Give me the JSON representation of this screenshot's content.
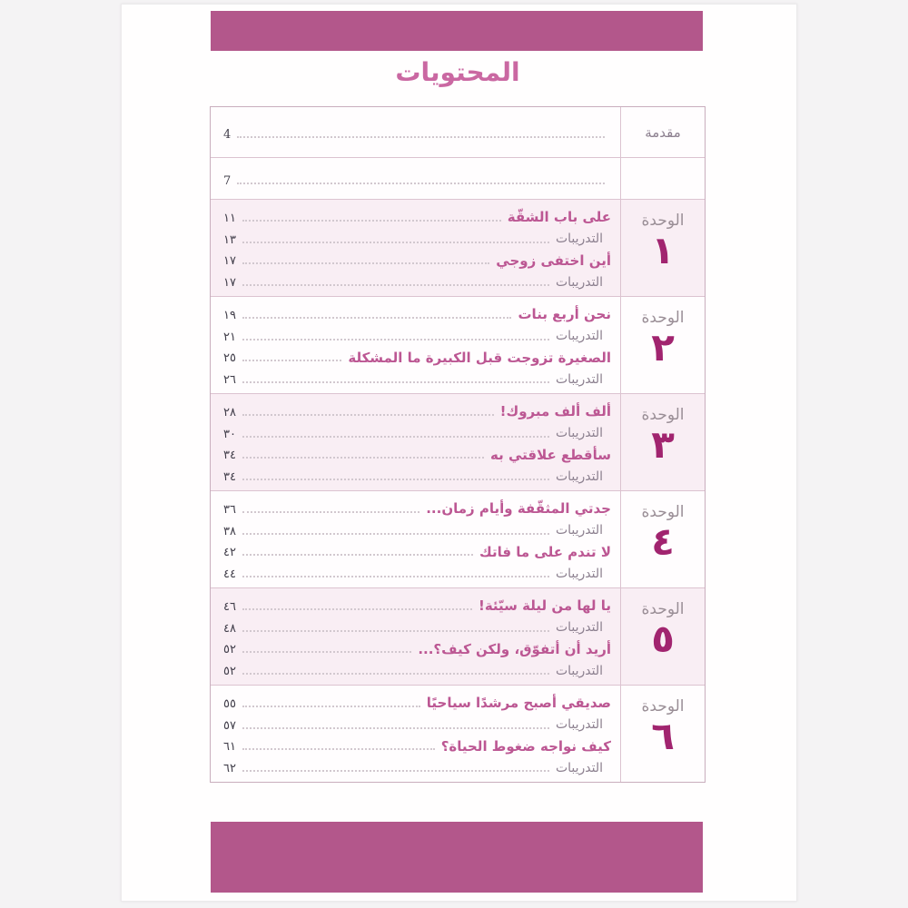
{
  "colors": {
    "accent_bar": "#b3578b",
    "title_text": "#ca68a2",
    "chapter_text": "#bc5793",
    "exercises_text": "#8d8190",
    "unit_label_text": "#9a8e96",
    "unit_number_text": "#a1246f",
    "page_number_text": "#413e4a",
    "row_tint": "#f9eef4",
    "table_border": "#dcc3d0"
  },
  "page_title": "المحتويات",
  "toc": {
    "intro_rows": [
      {
        "label": "مقدمة",
        "page": "4"
      },
      {
        "label": "",
        "page": "7"
      }
    ],
    "units": [
      {
        "unit_label": "الوحدة",
        "unit_number": "١",
        "tinted": true,
        "entries": [
          {
            "type": "chapter",
            "title": "على باب الشقّة",
            "page": "١١"
          },
          {
            "type": "exercises",
            "title": "التدريبات",
            "page": "١٣"
          },
          {
            "type": "chapter",
            "title": "أين اختفى زوجي",
            "page": "١٧"
          },
          {
            "type": "exercises",
            "title": "التدريبات",
            "page": "١٧"
          }
        ]
      },
      {
        "unit_label": "الوحدة",
        "unit_number": "٢",
        "tinted": false,
        "entries": [
          {
            "type": "chapter",
            "title": "نحن أربع بنات",
            "page": "١٩"
          },
          {
            "type": "exercises",
            "title": "التدريبات",
            "page": "٢١"
          },
          {
            "type": "chapter",
            "title": "الصغيرة تزوجت قبل الكبيرة ما المشكلة",
            "page": "٢٥"
          },
          {
            "type": "exercises",
            "title": "التدريبات",
            "page": "٢٦"
          }
        ]
      },
      {
        "unit_label": "الوحدة",
        "unit_number": "٣",
        "tinted": true,
        "entries": [
          {
            "type": "chapter",
            "title": "ألف ألف مبروك!",
            "page": "٢٨"
          },
          {
            "type": "exercises",
            "title": "التدريبات",
            "page": "٣٠"
          },
          {
            "type": "chapter",
            "title": "سأقطع علاقتي به",
            "page": "٣٤"
          },
          {
            "type": "exercises",
            "title": "التدريبات",
            "page": "٣٤"
          }
        ]
      },
      {
        "unit_label": "الوحدة",
        "unit_number": "٤",
        "tinted": false,
        "entries": [
          {
            "type": "chapter",
            "title": "جدتي المثقّفة وأيام زمان...",
            "page": "٣٦"
          },
          {
            "type": "exercises",
            "title": "التدريبات",
            "page": "٣٨"
          },
          {
            "type": "chapter",
            "title": "لا تندم على ما فاتك",
            "page": "٤٢"
          },
          {
            "type": "exercises",
            "title": "التدريبات",
            "page": "٤٤"
          }
        ]
      },
      {
        "unit_label": "الوحدة",
        "unit_number": "٥",
        "tinted": true,
        "entries": [
          {
            "type": "chapter",
            "title": "يا لها من ليلة سيّئة!",
            "page": "٤٦"
          },
          {
            "type": "exercises",
            "title": "التدريبات",
            "page": "٤٨"
          },
          {
            "type": "chapter",
            "title": "أريد أن أتفوّق، ولكن كيف؟...",
            "page": "٥٢"
          },
          {
            "type": "exercises",
            "title": "التدريبات",
            "page": "٥٢"
          }
        ]
      },
      {
        "unit_label": "الوحدة",
        "unit_number": "٦",
        "tinted": false,
        "entries": [
          {
            "type": "chapter",
            "title": "صديقي أصبح مرشدًا سياحيًا",
            "page": "٥٥"
          },
          {
            "type": "exercises",
            "title": "التدريبات",
            "page": "٥٧"
          },
          {
            "type": "chapter",
            "title": "كيف نواجه ضغوط الحياة؟",
            "page": "٦١"
          },
          {
            "type": "exercises",
            "title": "التدريبات",
            "page": "٦٢"
          }
        ]
      }
    ]
  }
}
